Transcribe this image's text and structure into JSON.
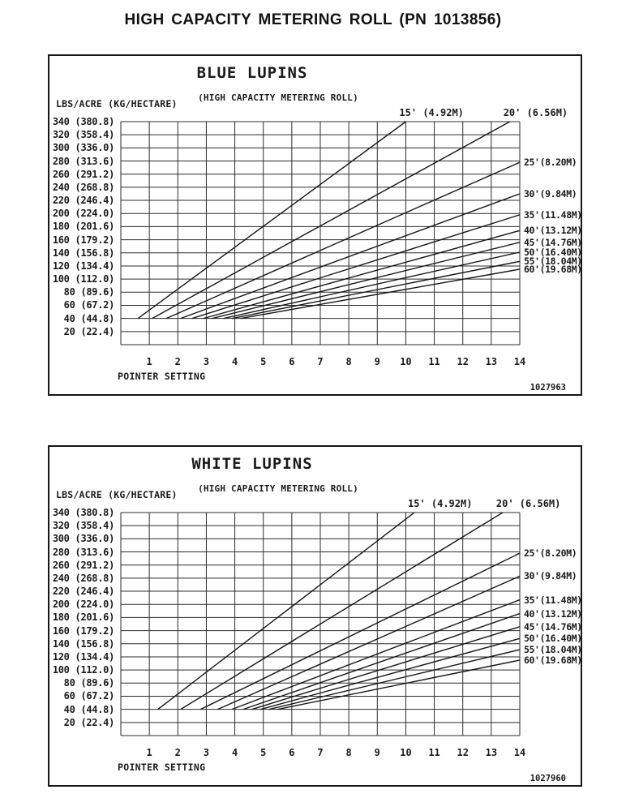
{
  "page_title": "HIGH CAPACITY METERING ROLL (PN 1013856)",
  "chart_data": [
    {
      "type": "line",
      "title": "BLUE LUPINS",
      "subtitle": "(HIGH CAPACITY METERING ROLL)",
      "y_axis_label": "LBS/ACRE (KG/HECTARE)",
      "x_axis_label": "POINTER SETTING",
      "figure_number": "1027963",
      "grid": true,
      "xlim": [
        0,
        14
      ],
      "ylim": [
        0,
        340
      ],
      "y_step": 20,
      "x_ticks": [
        1,
        2,
        3,
        4,
        5,
        6,
        7,
        8,
        9,
        10,
        11,
        12,
        13,
        14
      ],
      "y_ticks": [
        "340 (380.8)",
        "320 (358.4)",
        "300 (336.0)",
        "280 (313.6)",
        "260 (291.2)",
        "240 (268.8)",
        "220 (246.4)",
        "200 (224.0)",
        "180 (201.6)",
        "160 (179.2)",
        "140 (156.8)",
        "120 (134.4)",
        "100 (112.0)",
        "80 (89.6)",
        "60 (67.2)",
        "40 (44.8)",
        "20 (22.4)"
      ],
      "series": [
        {
          "label": "15' (4.92M)",
          "width_ft": 15,
          "points": [
            [
              0.6,
              40
            ],
            [
              10.0,
              340
            ]
          ],
          "label_at": "top"
        },
        {
          "label": "20' (6.56M)",
          "width_ft": 20,
          "points": [
            [
              1.1,
              40
            ],
            [
              13.65,
              340
            ]
          ],
          "label_at": "top"
        },
        {
          "label": "25'(8.20M)",
          "width_ft": 25,
          "points": [
            [
              1.6,
              40
            ],
            [
              14,
              278
            ]
          ],
          "label_at": "right"
        },
        {
          "label": "30'(9.84M)",
          "width_ft": 30,
          "points": [
            [
              2.1,
              40
            ],
            [
              14,
              230
            ]
          ],
          "label_at": "right"
        },
        {
          "label": "35'(11.48M)",
          "width_ft": 35,
          "points": [
            [
              2.5,
              40
            ],
            [
              14,
              198
            ]
          ],
          "label_at": "right"
        },
        {
          "label": "40'(13.12M)",
          "width_ft": 40,
          "points": [
            [
              2.9,
              40
            ],
            [
              14,
              174
            ]
          ],
          "label_at": "right"
        },
        {
          "label": "45'(14.76M)",
          "width_ft": 45,
          "points": [
            [
              3.2,
              40
            ],
            [
              14,
              156
            ]
          ],
          "label_at": "right"
        },
        {
          "label": "50'(16.40M)",
          "width_ft": 50,
          "points": [
            [
              3.6,
              40
            ],
            [
              14,
              141
            ]
          ],
          "label_at": "right"
        },
        {
          "label": "55'(18.04M)",
          "width_ft": 55,
          "points": [
            [
              3.9,
              40
            ],
            [
              14,
              127
            ]
          ],
          "label_at": "right"
        },
        {
          "label": "60'(19.68M)",
          "width_ft": 60,
          "points": [
            [
              4.2,
              40
            ],
            [
              14,
              115
            ]
          ],
          "label_at": "right"
        }
      ]
    },
    {
      "type": "line",
      "title": "WHITE LUPINS",
      "subtitle": "(HIGH CAPACITY METERING ROLL)",
      "y_axis_label": "LBS/ACRE (KG/HECTARE)",
      "x_axis_label": "POINTER SETTING",
      "figure_number": "1027960",
      "grid": true,
      "xlim": [
        0,
        14
      ],
      "ylim": [
        0,
        340
      ],
      "y_step": 20,
      "x_ticks": [
        1,
        2,
        3,
        4,
        5,
        6,
        7,
        8,
        9,
        10,
        11,
        12,
        13,
        14
      ],
      "y_ticks": [
        "340 (380.8)",
        "320 (358.4)",
        "300 (336.0)",
        "280 (313.6)",
        "260 (291.2)",
        "240 (268.8)",
        "220 (246.4)",
        "200 (224.0)",
        "180 (201.6)",
        "160 (179.2)",
        "140 (156.8)",
        "120 (134.4)",
        "100 (112.0)",
        "80 (89.6)",
        "60 (67.2)",
        "40 (44.8)",
        "20 (22.4)"
      ],
      "series": [
        {
          "label": "15' (4.92M)",
          "width_ft": 15,
          "points": [
            [
              1.3,
              40
            ],
            [
              10.3,
              340
            ]
          ],
          "label_at": "top"
        },
        {
          "label": "20' (6.56M)",
          "width_ft": 20,
          "points": [
            [
              2.1,
              40
            ],
            [
              13.4,
              340
            ]
          ],
          "label_at": "top"
        },
        {
          "label": "25'(8.20M)",
          "width_ft": 25,
          "points": [
            [
              2.8,
              40
            ],
            [
              14,
              278
            ]
          ],
          "label_at": "right"
        },
        {
          "label": "30'(9.84M)",
          "width_ft": 30,
          "points": [
            [
              3.4,
              40
            ],
            [
              14,
              243
            ]
          ],
          "label_at": "right"
        },
        {
          "label": "35'(11.48M)",
          "width_ft": 35,
          "points": [
            [
              3.9,
              40
            ],
            [
              14,
              207
            ]
          ],
          "label_at": "right"
        },
        {
          "label": "40'(13.12M)",
          "width_ft": 40,
          "points": [
            [
              4.3,
              40
            ],
            [
              14,
              186
            ]
          ],
          "label_at": "right"
        },
        {
          "label": "45'(14.76M)",
          "width_ft": 45,
          "points": [
            [
              4.6,
              40
            ],
            [
              14,
              166
            ]
          ],
          "label_at": "right"
        },
        {
          "label": "50'(16.40M)",
          "width_ft": 50,
          "points": [
            [
              4.9,
              40
            ],
            [
              14,
              148
            ]
          ],
          "label_at": "right"
        },
        {
          "label": "55'(18.04M)",
          "width_ft": 55,
          "points": [
            [
              5.2,
              40
            ],
            [
              14,
              131
            ]
          ],
          "label_at": "right"
        },
        {
          "label": "60'(19.68M)",
          "width_ft": 60,
          "points": [
            [
              5.5,
              40
            ],
            [
              14,
              115
            ]
          ],
          "label_at": "right"
        }
      ]
    }
  ]
}
